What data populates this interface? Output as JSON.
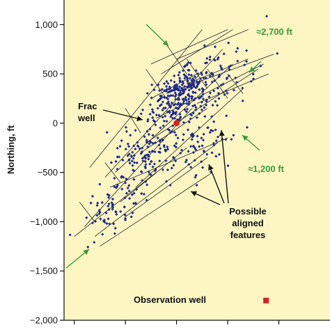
{
  "chart_data": {
    "type": "scatter",
    "xlabel": "",
    "ylabel": "Northing, ft",
    "ylim": [
      -2000,
      1250
    ],
    "xlim": [
      -1100,
      1500
    ],
    "yticks": [
      1000,
      500,
      0,
      -500,
      -1000,
      -1500,
      -2000
    ],
    "ytick_labels": [
      "1,000",
      "500",
      "0",
      "−500",
      "−1,000",
      "−1,500",
      "−2,000"
    ],
    "grid": false,
    "colors": {
      "background": "#fdf6c3",
      "points": "#1f2a8c",
      "frac_well": "#e0201c",
      "observation_well": "#d92020",
      "arrows_green": "#3a9a3a",
      "lines": "#222222"
    },
    "point_seed_note": "",
    "clusters": [
      {
        "cx": 0,
        "cy": 300,
        "sx": 170,
        "sy": 170,
        "n": 180
      },
      {
        "cx": 150,
        "cy": 250,
        "sx": 260,
        "sy": 220,
        "n": 110
      },
      {
        "cx": -300,
        "cy": -350,
        "sx": 200,
        "sy": 250,
        "n": 120
      },
      {
        "cx": -600,
        "cy": -850,
        "sx": 180,
        "sy": 200,
        "n": 70
      },
      {
        "cx": 400,
        "cy": 450,
        "sx": 250,
        "sy": 250,
        "n": 60
      },
      {
        "cx": 200,
        "cy": -300,
        "sx": 200,
        "sy": 250,
        "n": 60
      }
    ],
    "frac_well": {
      "x": 0,
      "y": 0,
      "label": "Frac\nwell"
    },
    "observation_well": {
      "x": 875,
      "y": -1800,
      "label": "Observation well"
    },
    "annotations": {
      "aligned_features": [
        "Possible",
        "aligned",
        "features"
      ],
      "distance_long": "≈2,700 ft",
      "distance_short": "≈1,200 ft",
      "frac_label_line1": "Frac",
      "frac_label_line2": "well",
      "observation_label": "Observation well"
    }
  }
}
